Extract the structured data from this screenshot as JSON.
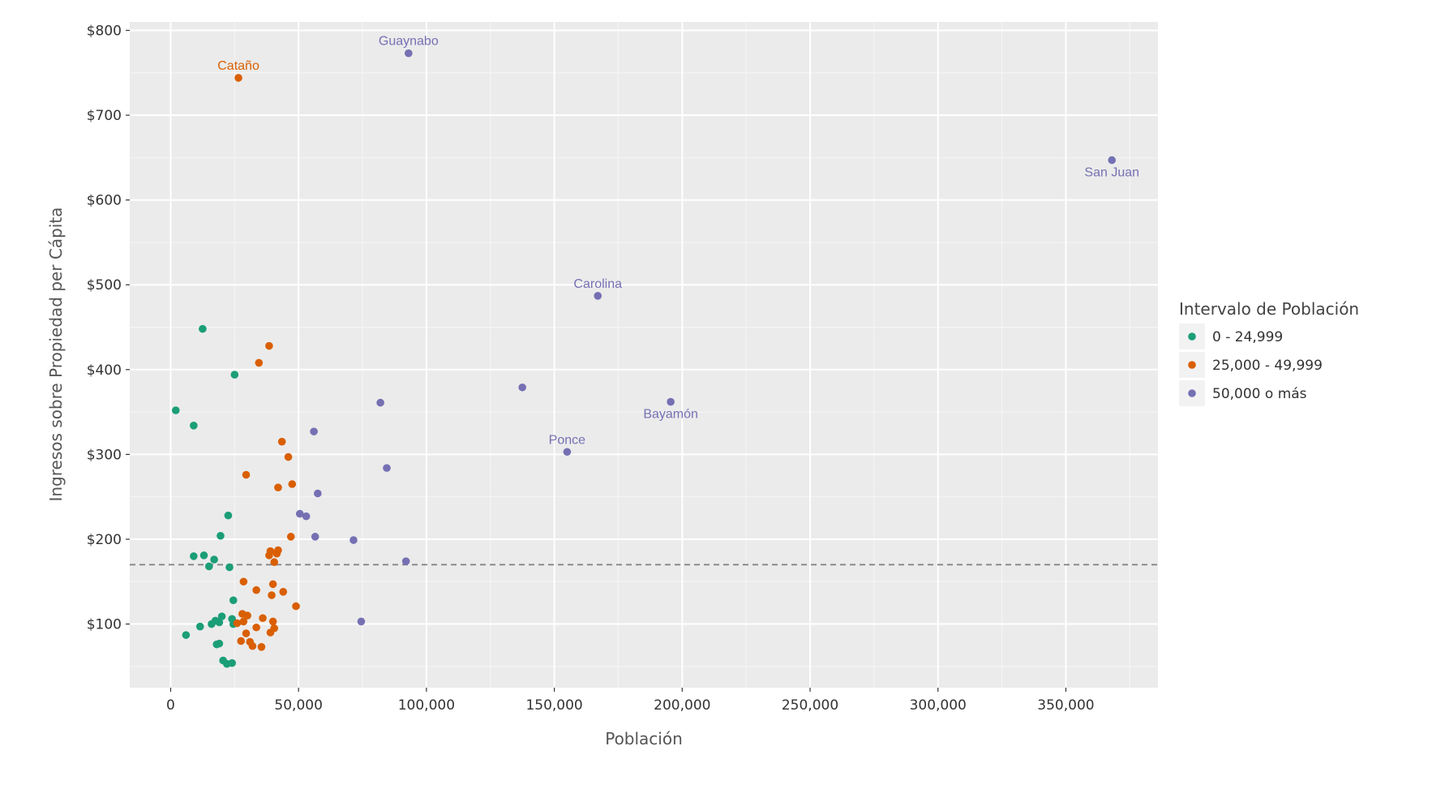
{
  "chart_data": {
    "type": "scatter",
    "xlabel": "Población",
    "ylabel": "Ingresos sobre Propiedad per Cápita",
    "xlim": [
      -16000,
      386000
    ],
    "ylim": [
      25,
      810
    ],
    "x_ticks": [
      0,
      50000,
      100000,
      150000,
      200000,
      250000,
      300000,
      350000
    ],
    "x_tick_labels": [
      "0",
      "50,000",
      "100,000",
      "150,000",
      "200,000",
      "250,000",
      "300,000",
      "350,000"
    ],
    "y_ticks": [
      100,
      200,
      300,
      400,
      500,
      600,
      700,
      800
    ],
    "y_tick_labels": [
      "$100",
      "$200",
      "$300",
      "$400",
      "$500",
      "$600",
      "$700",
      "$800"
    ],
    "reference_line": {
      "y": 170,
      "style": "dashed",
      "color": "#7f7f7f"
    },
    "grid": true,
    "background": "#ebebeb",
    "legend": {
      "title": "Intervalo de Población",
      "position": "right"
    },
    "series": [
      {
        "name": "0 - 24,999",
        "color": "#1b9e77",
        "points": [
          {
            "x": 2000,
            "y": 352
          },
          {
            "x": 6000,
            "y": 87
          },
          {
            "x": 9000,
            "y": 334
          },
          {
            "x": 9000,
            "y": 180
          },
          {
            "x": 11500,
            "y": 97
          },
          {
            "x": 12500,
            "y": 448
          },
          {
            "x": 13000,
            "y": 181
          },
          {
            "x": 15000,
            "y": 168
          },
          {
            "x": 16000,
            "y": 100
          },
          {
            "x": 17000,
            "y": 176
          },
          {
            "x": 17500,
            "y": 104
          },
          {
            "x": 18000,
            "y": 76
          },
          {
            "x": 19000,
            "y": 77
          },
          {
            "x": 19000,
            "y": 102
          },
          {
            "x": 19500,
            "y": 204
          },
          {
            "x": 20000,
            "y": 109
          },
          {
            "x": 20500,
            "y": 57
          },
          {
            "x": 22000,
            "y": 53
          },
          {
            "x": 22500,
            "y": 228
          },
          {
            "x": 23000,
            "y": 167
          },
          {
            "x": 24000,
            "y": 106
          },
          {
            "x": 24000,
            "y": 54
          },
          {
            "x": 24500,
            "y": 128
          },
          {
            "x": 24500,
            "y": 100
          },
          {
            "x": 25000,
            "y": 394
          }
        ]
      },
      {
        "name": "25,000 - 49,999",
        "color": "#d95f02",
        "points": [
          {
            "x": 26500,
            "y": 744
          },
          {
            "x": 26000,
            "y": 101
          },
          {
            "x": 27500,
            "y": 80
          },
          {
            "x": 28000,
            "y": 112
          },
          {
            "x": 28500,
            "y": 150
          },
          {
            "x": 28500,
            "y": 103
          },
          {
            "x": 29500,
            "y": 276
          },
          {
            "x": 29500,
            "y": 89
          },
          {
            "x": 30000,
            "y": 110
          },
          {
            "x": 31000,
            "y": 79
          },
          {
            "x": 32000,
            "y": 74
          },
          {
            "x": 33500,
            "y": 140
          },
          {
            "x": 33500,
            "y": 96
          },
          {
            "x": 34500,
            "y": 408
          },
          {
            "x": 35500,
            "y": 73
          },
          {
            "x": 36000,
            "y": 107
          },
          {
            "x": 38500,
            "y": 428
          },
          {
            "x": 38500,
            "y": 181
          },
          {
            "x": 39000,
            "y": 186
          },
          {
            "x": 39000,
            "y": 90
          },
          {
            "x": 39500,
            "y": 134
          },
          {
            "x": 40000,
            "y": 147
          },
          {
            "x": 40000,
            "y": 103
          },
          {
            "x": 40500,
            "y": 173
          },
          {
            "x": 40500,
            "y": 95
          },
          {
            "x": 41500,
            "y": 183
          },
          {
            "x": 42000,
            "y": 261
          },
          {
            "x": 42000,
            "y": 187
          },
          {
            "x": 43500,
            "y": 315
          },
          {
            "x": 44000,
            "y": 138
          },
          {
            "x": 46000,
            "y": 297
          },
          {
            "x": 47000,
            "y": 203
          },
          {
            "x": 47500,
            "y": 265
          },
          {
            "x": 49000,
            "y": 121
          }
        ]
      },
      {
        "name": "50,000 o más",
        "color": "#7570b3",
        "points": [
          {
            "x": 50500,
            "y": 230
          },
          {
            "x": 53000,
            "y": 227
          },
          {
            "x": 56000,
            "y": 327
          },
          {
            "x": 56500,
            "y": 203
          },
          {
            "x": 57500,
            "y": 254
          },
          {
            "x": 71500,
            "y": 199
          },
          {
            "x": 74500,
            "y": 103
          },
          {
            "x": 82000,
            "y": 361
          },
          {
            "x": 84500,
            "y": 284
          },
          {
            "x": 92000,
            "y": 174
          },
          {
            "x": 93000,
            "y": 773
          },
          {
            "x": 137500,
            "y": 379
          },
          {
            "x": 155000,
            "y": 303
          },
          {
            "x": 167000,
            "y": 487
          },
          {
            "x": 195500,
            "y": 362
          },
          {
            "x": 368000,
            "y": 647
          }
        ]
      }
    ],
    "annotations": [
      {
        "text": "Guaynabo",
        "x": 93000,
        "y": 773,
        "series": 2,
        "pos": "above"
      },
      {
        "text": "Cataño",
        "x": 26500,
        "y": 744,
        "series": 1,
        "pos": "above"
      },
      {
        "text": "San Juan",
        "x": 368000,
        "y": 647,
        "series": 2,
        "pos": "below"
      },
      {
        "text": "Carolina",
        "x": 167000,
        "y": 487,
        "series": 2,
        "pos": "above"
      },
      {
        "text": "Bayamón",
        "x": 195500,
        "y": 362,
        "series": 2,
        "pos": "below"
      },
      {
        "text": "Ponce",
        "x": 155000,
        "y": 303,
        "series": 2,
        "pos": "above"
      }
    ]
  }
}
